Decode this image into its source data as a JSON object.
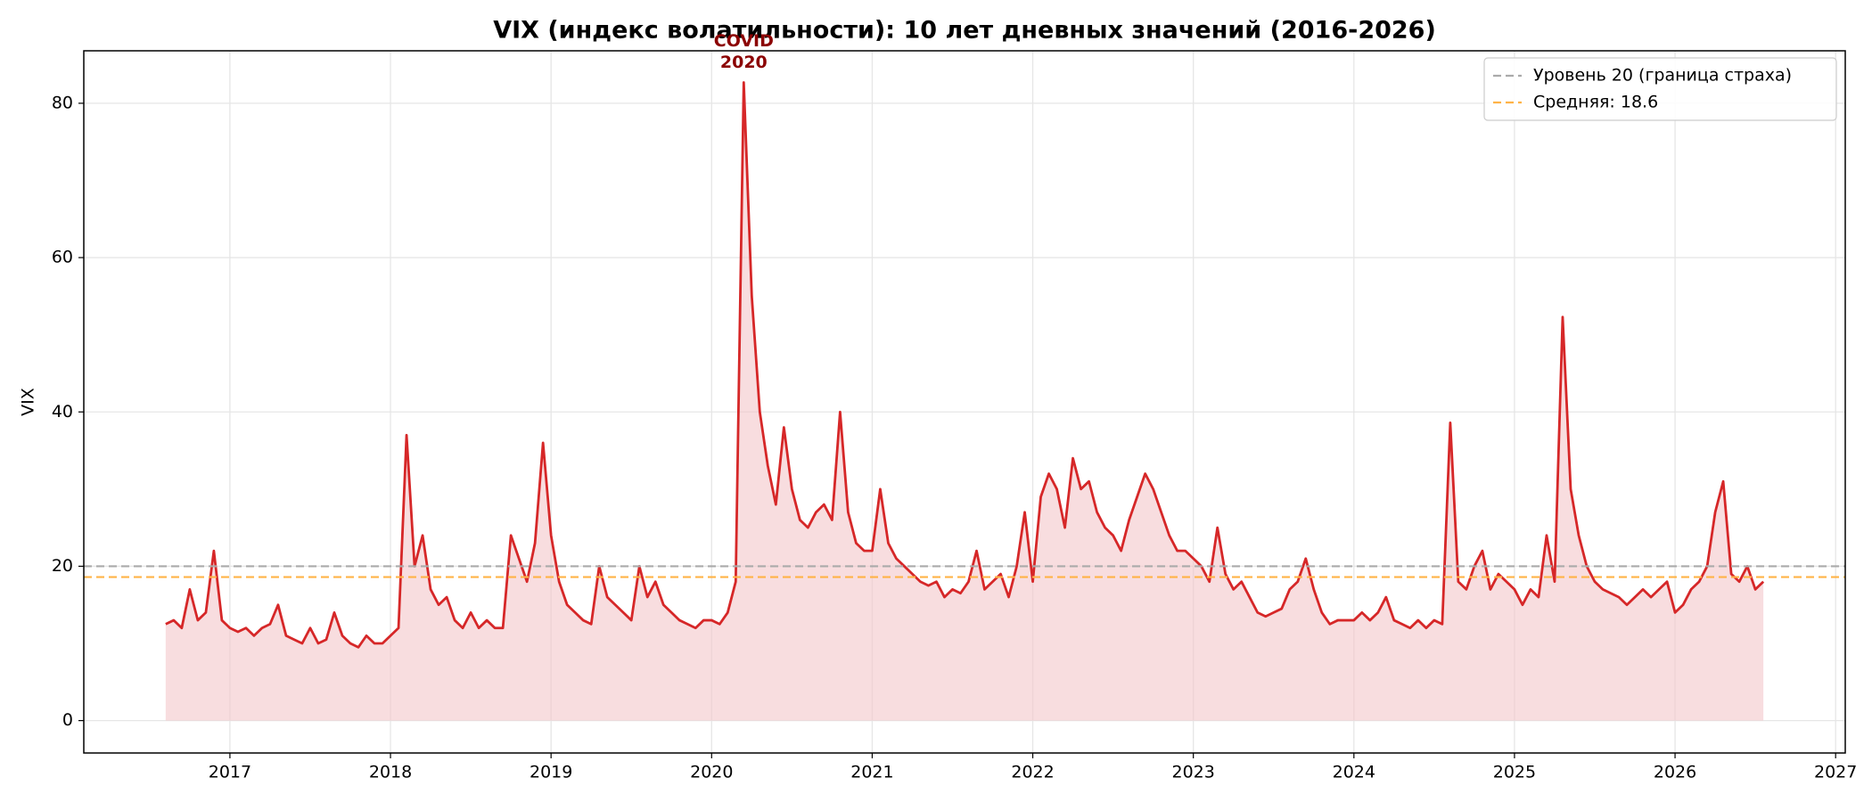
{
  "chart_data": {
    "type": "line",
    "title": "VIX (индекс волатильности): 10 лет дневных значений (2016-2026)",
    "ylabel": "VIX",
    "xlim": [
      2016.09,
      2027.06
    ],
    "xticks": [
      2017,
      2018,
      2019,
      2020,
      2021,
      2022,
      2023,
      2024,
      2025,
      2026,
      2027
    ],
    "ylim": [
      -4.2,
      86.8
    ],
    "yticks": [
      0,
      20,
      40,
      60,
      80
    ],
    "grid": true,
    "legend": "upper right",
    "x": [
      2016.6,
      2016.65,
      2016.7,
      2016.75,
      2016.8,
      2016.85,
      2016.9,
      2016.95,
      2017.0,
      2017.05,
      2017.1,
      2017.15,
      2017.2,
      2017.25,
      2017.3,
      2017.35,
      2017.4,
      2017.45,
      2017.5,
      2017.55,
      2017.6,
      2017.65,
      2017.7,
      2017.75,
      2017.8,
      2017.85,
      2017.9,
      2017.95,
      2018.0,
      2018.05,
      2018.1,
      2018.15,
      2018.2,
      2018.25,
      2018.3,
      2018.35,
      2018.4,
      2018.45,
      2018.5,
      2018.55,
      2018.6,
      2018.65,
      2018.7,
      2018.75,
      2018.8,
      2018.85,
      2018.9,
      2018.95,
      2019.0,
      2019.05,
      2019.1,
      2019.15,
      2019.2,
      2019.25,
      2019.3,
      2019.35,
      2019.4,
      2019.45,
      2019.5,
      2019.55,
      2019.6,
      2019.65,
      2019.7,
      2019.75,
      2019.8,
      2019.85,
      2019.9,
      2019.95,
      2020.0,
      2020.05,
      2020.1,
      2020.15,
      2020.2,
      2020.25,
      2020.3,
      2020.35,
      2020.4,
      2020.45,
      2020.5,
      2020.55,
      2020.6,
      2020.65,
      2020.7,
      2020.75,
      2020.8,
      2020.85,
      2020.9,
      2020.95,
      2021.0,
      2021.05,
      2021.1,
      2021.15,
      2021.2,
      2021.25,
      2021.3,
      2021.35,
      2021.4,
      2021.45,
      2021.5,
      2021.55,
      2021.6,
      2021.65,
      2021.7,
      2021.75,
      2021.8,
      2021.85,
      2021.9,
      2021.95,
      2022.0,
      2022.05,
      2022.1,
      2022.15,
      2022.2,
      2022.25,
      2022.3,
      2022.35,
      2022.4,
      2022.45,
      2022.5,
      2022.55,
      2022.6,
      2022.65,
      2022.7,
      2022.75,
      2022.8,
      2022.85,
      2022.9,
      2022.95,
      2023.0,
      2023.05,
      2023.1,
      2023.15,
      2023.2,
      2023.25,
      2023.3,
      2023.35,
      2023.4,
      2023.45,
      2023.5,
      2023.55,
      2023.6,
      2023.65,
      2023.7,
      2023.75,
      2023.8,
      2023.85,
      2023.9,
      2023.95,
      2024.0,
      2024.05,
      2024.1,
      2024.15,
      2024.2,
      2024.25,
      2024.3,
      2024.35,
      2024.4,
      2024.45,
      2024.5,
      2024.55,
      2024.6,
      2024.65,
      2024.7,
      2024.75,
      2024.8,
      2024.85,
      2024.9,
      2024.95,
      2025.0,
      2025.05,
      2025.1,
      2025.15,
      2025.2,
      2025.25,
      2025.3,
      2025.35,
      2025.4,
      2025.45,
      2025.5,
      2025.55,
      2025.6,
      2025.65,
      2025.7,
      2025.75,
      2025.8,
      2025.85,
      2025.9,
      2025.95,
      2026.0,
      2026.05,
      2026.1,
      2026.15,
      2026.2,
      2026.25,
      2026.3,
      2026.35,
      2026.4,
      2026.45,
      2026.5,
      2026.55
    ],
    "series": [
      {
        "name": "VIX",
        "color": "#d62728",
        "fill": "#f4c6ca",
        "values": [
          12.5,
          13,
          12,
          17,
          13,
          14,
          22,
          13,
          12,
          11.5,
          12,
          11,
          12,
          12.5,
          15,
          11,
          10.5,
          10,
          12,
          10,
          10.5,
          14,
          11,
          10,
          9.5,
          11,
          10,
          10,
          11,
          12,
          37,
          20,
          24,
          17,
          15,
          16,
          13,
          12,
          14,
          12,
          13,
          12,
          12,
          24,
          21,
          18,
          23,
          36,
          24,
          18,
          15,
          14,
          13,
          12.5,
          20,
          16,
          15,
          14,
          13,
          20,
          16,
          18,
          15,
          14,
          13,
          12.5,
          12,
          13,
          13,
          12.5,
          14,
          18,
          82.7,
          55,
          40,
          33,
          28,
          38,
          30,
          26,
          25,
          27,
          28,
          26,
          40,
          27,
          23,
          22,
          22,
          30,
          23,
          21,
          20,
          19,
          18,
          17.5,
          18,
          16,
          17,
          16.5,
          18,
          22,
          17,
          18,
          19,
          16,
          20,
          27,
          18,
          29,
          32,
          30,
          25,
          34,
          30,
          31,
          27,
          25,
          24,
          22,
          26,
          29,
          32,
          30,
          27,
          24,
          22,
          22,
          21,
          20,
          18,
          25,
          19,
          17,
          18,
          16,
          14,
          13.5,
          14,
          14.5,
          17,
          18,
          21,
          17,
          14,
          12.5,
          13,
          13,
          13,
          14,
          13,
          14,
          16,
          13,
          12.5,
          12,
          13,
          12,
          13,
          12.5,
          38.6,
          18,
          17,
          20,
          22,
          17,
          19,
          18,
          17,
          15,
          17,
          16,
          24,
          18,
          52.3,
          30,
          24,
          20,
          18,
          17,
          16.5,
          16,
          15,
          16,
          17,
          16,
          17,
          18,
          14,
          15,
          17,
          18,
          20,
          27,
          31,
          19,
          18,
          20,
          17,
          18
        ]
      }
    ],
    "hlines": [
      {
        "value": 20,
        "label": "Уровень 20 (граница страха)",
        "color": "#aaaaaa"
      },
      {
        "value": 18.6,
        "label": "Средняя: 18.6",
        "color": "#ffb347"
      }
    ],
    "annotation": {
      "lines": [
        "COVID",
        "2020"
      ],
      "x": 2020.2,
      "y": 82.7,
      "color": "#8b0000"
    }
  }
}
